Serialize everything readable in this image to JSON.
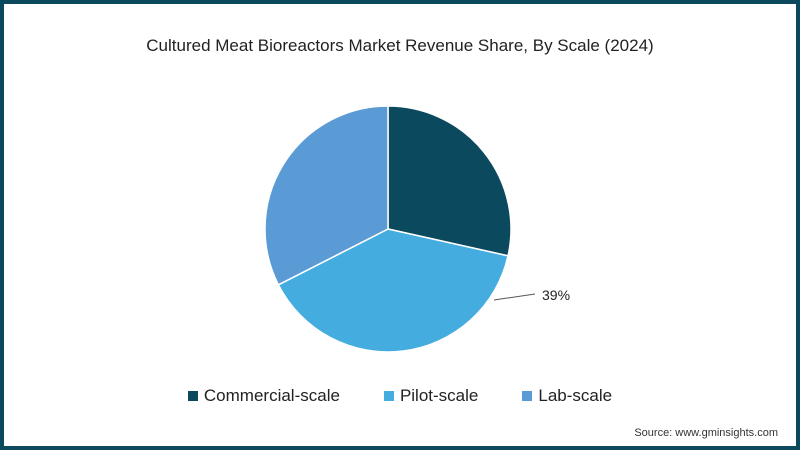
{
  "chart_data": {
    "type": "pie",
    "title": "Cultured Meat Bioreactors Market Revenue Share, By Scale (2024)",
    "categories": [
      "Commercial-scale",
      "Pilot-scale",
      "Lab-scale"
    ],
    "values": [
      28.5,
      39,
      32.5
    ],
    "colors": [
      "#0b4a5e",
      "#45ace0",
      "#5a9bd5"
    ],
    "labels_shown": [
      {
        "category": "Pilot-scale",
        "text": "39%"
      }
    ],
    "legend_position": "bottom",
    "start_angle_deg": 0,
    "direction": "clockwise"
  },
  "title": "Cultured Meat Bioreactors Market Revenue Share, By Scale (2024)",
  "callout": "39%",
  "legend": [
    {
      "label": "Commercial-scale",
      "color": "#0b4a5e"
    },
    {
      "label": "Pilot-scale",
      "color": "#45ace0"
    },
    {
      "label": "Lab-scale",
      "color": "#5a9bd5"
    }
  ],
  "source": "Source: www.gminsights.com"
}
